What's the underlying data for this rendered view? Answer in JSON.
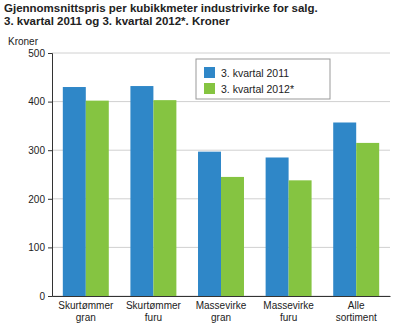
{
  "chart_data": {
    "type": "bar",
    "title": "Gjennomsnittspris per kubikkmeter industrivirke for salg.",
    "subtitle": "3. kvartal 2011 og 3. kvartal 2012*. Kroner",
    "y_label": "Kroner",
    "categories": [
      "Skurtømmer gran",
      "Skurtømmer furu",
      "Massevirke gran",
      "Massevirke furu",
      "Alle sortiment"
    ],
    "series": [
      {
        "name": "3. kvartal 2011",
        "color": "#2f87c8",
        "values": [
          430,
          432,
          297,
          285,
          357
        ]
      },
      {
        "name": "3. kvartal 2012*",
        "color": "#85c441",
        "values": [
          402,
          403,
          245,
          238,
          315
        ]
      }
    ],
    "ylim": [
      0,
      500
    ],
    "yticks": [
      0,
      100,
      200,
      300,
      400,
      500
    ],
    "grid": true,
    "legend": "top-right"
  }
}
